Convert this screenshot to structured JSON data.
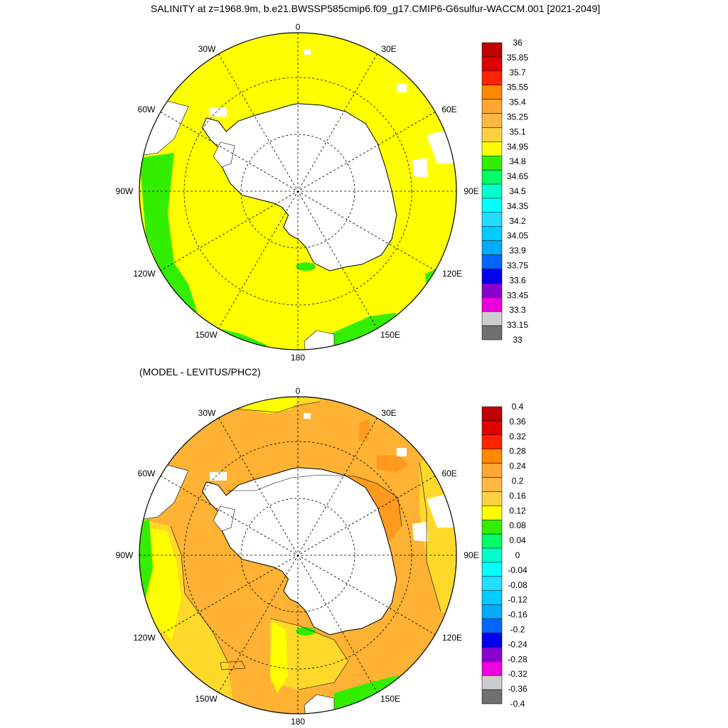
{
  "title": "SALINITY at z=1968.9m, b.e21.BWSSP585cmip6.f09_g17.CMIP6-G6sulfur-WACCM.001 [2021-2049]",
  "diff_title": "(MODEL - LEVITUS/PHC2)",
  "longitude_labels": [
    "0",
    "30E",
    "60E",
    "90E",
    "120E",
    "150E",
    "180",
    "150W",
    "120W",
    "90W",
    "60W",
    "30W"
  ],
  "colors": {
    "land": "#ffffff",
    "coast": "#000000",
    "grid": "#000000",
    "yellow": "#ffff00",
    "green": "#33ee00",
    "diff_light_orange": "#ffb233",
    "diff_mid_orange": "#ffa228",
    "diff_dark_orange": "#ff9a1f",
    "diff_yellow": "#ffd92a"
  },
  "maps": [
    {
      "name": "salinity",
      "colorbar": {
        "labels": [
          "36",
          "35.85",
          "35.7",
          "35.55",
          "35.4",
          "35.25",
          "35.1",
          "34.95",
          "34.8",
          "34.65",
          "34.5",
          "34.35",
          "34.2",
          "34.05",
          "33.9",
          "33.75",
          "33.6",
          "33.45",
          "33.3",
          "33.15",
          "33"
        ],
        "colors": [
          "#c00000",
          "#e00000",
          "#ff2200",
          "#ff8800",
          "#ffa633",
          "#ffb844",
          "#ffd040",
          "#ffff00",
          "#33ee00",
          "#00ff66",
          "#00ffcc",
          "#00ffff",
          "#22ddff",
          "#00ccff",
          "#00aaff",
          "#0066ff",
          "#0000ee",
          "#8800cc",
          "#ee00dd",
          "#cccccc",
          "#707070"
        ]
      }
    },
    {
      "name": "difference",
      "colorbar": {
        "labels": [
          "0.4",
          "0.36",
          "0.32",
          "0.28",
          "0.24",
          "0.2",
          "0.16",
          "0.12",
          "0.08",
          "0.04",
          "0",
          "-0.04",
          "-0.08",
          "-0.12",
          "-0.16",
          "-0.2",
          "-0.24",
          "-0.28",
          "-0.32",
          "-0.36",
          "-0.4"
        ],
        "colors": [
          "#c00000",
          "#e00000",
          "#ff2200",
          "#ff8800",
          "#ffa633",
          "#ffb844",
          "#ffd040",
          "#ffff00",
          "#33ee00",
          "#00ff66",
          "#00ffcc",
          "#00ffff",
          "#22ddff",
          "#00ccff",
          "#00aaff",
          "#0066ff",
          "#0000ee",
          "#8800cc",
          "#ee00dd",
          "#cccccc",
          "#707070"
        ]
      }
    }
  ]
}
